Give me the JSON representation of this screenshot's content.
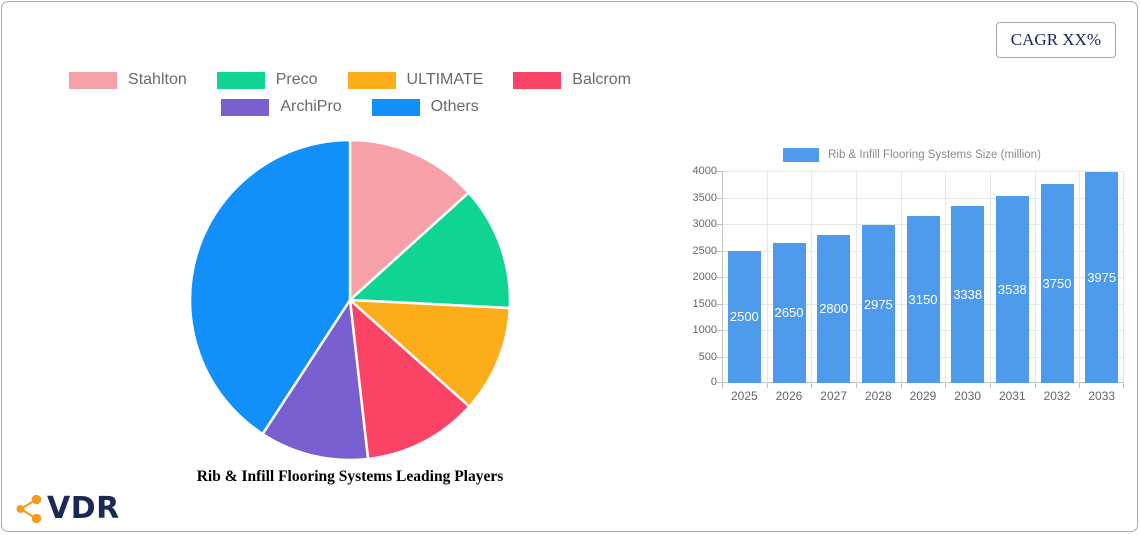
{
  "cagr_badge": {
    "label": "CAGR XX%"
  },
  "logo": {
    "text": "VDR",
    "icon": "share-nodes-icon",
    "icon_color": "#F59B20",
    "text_color": "#1B2A52"
  },
  "chart_data": [
    {
      "type": "pie",
      "title": "Rib & Infill Flooring Systems Leading Players",
      "labels": [
        "Stahlton",
        "Preco",
        "ULTIMATE",
        "Balcrom",
        "ArchiPro",
        "Others"
      ],
      "values": [
        13.3,
        12.5,
        10.8,
        11.6,
        11.0,
        40.8
      ],
      "values_unit": "% share, estimated from slice angles",
      "colors": [
        "#F5A1A7",
        "#10D592",
        "#FBAD1A",
        "#FB4365",
        "#7A5FD0",
        "#1190FA"
      ],
      "legend_position": "top",
      "start_angle_deg": 0,
      "direction": "clockwise",
      "slice_border_color": "#FFFFFF"
    },
    {
      "type": "bar",
      "legend_label": "Rib & Infill Flooring Systems Size (million)",
      "categories": [
        "2025",
        "2026",
        "2027",
        "2028",
        "2029",
        "2030",
        "2031",
        "2032",
        "2033"
      ],
      "values": [
        2500,
        2650,
        2800,
        2975,
        3150,
        3338,
        3538,
        3750,
        3975
      ],
      "bar_color": "#4D9BEA",
      "value_label_color": "#FFFFFF",
      "value_label_position": "inside-center",
      "ylim": [
        0,
        4000
      ],
      "ytick_step": 500,
      "grid": true,
      "legend_position": "top"
    }
  ]
}
